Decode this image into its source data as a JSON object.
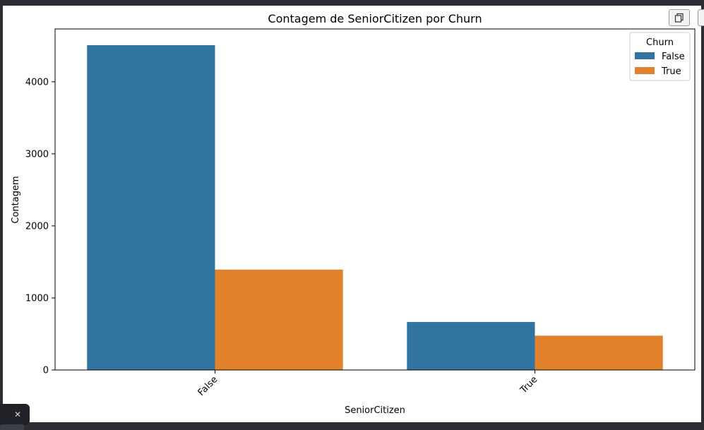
{
  "chart_data": {
    "type": "bar",
    "title": "Contagem de SeniorCitizen por Churn",
    "xlabel": "SeniorCitizen",
    "ylabel": "Contagem",
    "categories": [
      "False",
      "True"
    ],
    "series": [
      {
        "name": "False",
        "color": "#3274a1",
        "values": [
          4508,
          666
        ]
      },
      {
        "name": "True",
        "color": "#e1812c",
        "values": [
          1393,
          476
        ]
      }
    ],
    "yticks": [
      0,
      1000,
      2000,
      3000,
      4000
    ],
    "ylim": [
      0,
      4733
    ],
    "legend": {
      "title": "Churn",
      "placement": "top-right"
    },
    "grid": false
  },
  "ui": {
    "copy_icon": "copy-icon",
    "close_glyph": "✕"
  }
}
